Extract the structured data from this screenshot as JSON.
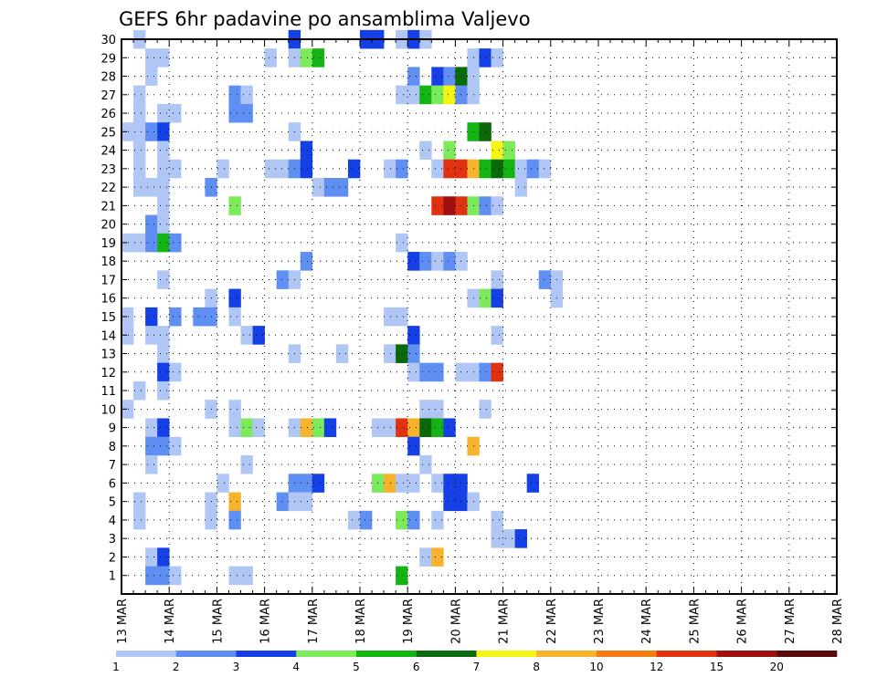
{
  "chart_data": {
    "type": "heatmap",
    "title": "GEFS 6hr padavine po ansamblima Valjevo",
    "y_ticks": [
      "1",
      "2",
      "3",
      "4",
      "5",
      "6",
      "7",
      "8",
      "9",
      "10",
      "11",
      "12",
      "13",
      "14",
      "15",
      "16",
      "17",
      "18",
      "19",
      "20",
      "21",
      "22",
      "23",
      "24",
      "25",
      "26",
      "27",
      "28",
      "29",
      "30"
    ],
    "x_ticks": [
      "13 MAR",
      "14 MAR",
      "15 MAR",
      "16 MAR",
      "17 MAR",
      "18 MAR",
      "19 MAR",
      "20 MAR",
      "21 MAR",
      "22 MAR",
      "23 MAR",
      "24 MAR",
      "25 MAR",
      "26 MAR",
      "27 MAR",
      "28 MAR"
    ],
    "x_range_days": [
      13,
      28
    ],
    "y_range": [
      0,
      30
    ],
    "grid": true,
    "legend": {
      "position": "bottom",
      "colors": [
        "#b0c6f5",
        "#5f8ff2",
        "#1440e6",
        "#7cea5a",
        "#14b414",
        "#0a6a0a",
        "#f5f514",
        "#f8b32c",
        "#f57d14",
        "#e03210",
        "#a01010",
        "#5a0a0a"
      ],
      "labels": [
        "1",
        "2",
        "3",
        "4",
        "5",
        "6",
        "7",
        "8",
        "10",
        "12",
        "15",
        "20"
      ]
    },
    "cells": [
      [
        1,
        30,
        0
      ],
      [
        14,
        30,
        2
      ],
      [
        20,
        30,
        2
      ],
      [
        21,
        30,
        2
      ],
      [
        23,
        30,
        0
      ],
      [
        24,
        30,
        2
      ],
      [
        25,
        30,
        0
      ],
      [
        2,
        29,
        0
      ],
      [
        3,
        29,
        0
      ],
      [
        12,
        29,
        0
      ],
      [
        14,
        29,
        0
      ],
      [
        15,
        29,
        3
      ],
      [
        16,
        29,
        4
      ],
      [
        29,
        29,
        0
      ],
      [
        30,
        29,
        2
      ],
      [
        31,
        29,
        0
      ],
      [
        2,
        28,
        0
      ],
      [
        24,
        28,
        1
      ],
      [
        26,
        28,
        2
      ],
      [
        27,
        28,
        1
      ],
      [
        28,
        28,
        5
      ],
      [
        29,
        28,
        0
      ],
      [
        1,
        27,
        0
      ],
      [
        9,
        27,
        1
      ],
      [
        10,
        27,
        0
      ],
      [
        23,
        27,
        0
      ],
      [
        24,
        27,
        0
      ],
      [
        25,
        27,
        4
      ],
      [
        26,
        27,
        3
      ],
      [
        27,
        27,
        6
      ],
      [
        28,
        27,
        1
      ],
      [
        29,
        27,
        0
      ],
      [
        1,
        26,
        0
      ],
      [
        3,
        26,
        0
      ],
      [
        4,
        26,
        0
      ],
      [
        9,
        26,
        1
      ],
      [
        10,
        26,
        1
      ],
      [
        0,
        25,
        0
      ],
      [
        1,
        25,
        0
      ],
      [
        2,
        25,
        1
      ],
      [
        3,
        25,
        2
      ],
      [
        14,
        25,
        0
      ],
      [
        29,
        25,
        4
      ],
      [
        30,
        25,
        5
      ],
      [
        1,
        24,
        0
      ],
      [
        3,
        24,
        0
      ],
      [
        15,
        24,
        2
      ],
      [
        25,
        24,
        0
      ],
      [
        27,
        24,
        3
      ],
      [
        31,
        24,
        6
      ],
      [
        32,
        24,
        3
      ],
      [
        1,
        23,
        0
      ],
      [
        3,
        23,
        0
      ],
      [
        4,
        23,
        0
      ],
      [
        8,
        23,
        0
      ],
      [
        12,
        23,
        0
      ],
      [
        13,
        23,
        0
      ],
      [
        14,
        23,
        1
      ],
      [
        15,
        23,
        2
      ],
      [
        19,
        23,
        2
      ],
      [
        22,
        23,
        0
      ],
      [
        23,
        23,
        1
      ],
      [
        26,
        23,
        0
      ],
      [
        27,
        23,
        9
      ],
      [
        28,
        23,
        9
      ],
      [
        29,
        23,
        7
      ],
      [
        30,
        23,
        4
      ],
      [
        31,
        23,
        5
      ],
      [
        32,
        23,
        4
      ],
      [
        33,
        23,
        0
      ],
      [
        34,
        23,
        1
      ],
      [
        35,
        23,
        0
      ],
      [
        1,
        22,
        0
      ],
      [
        2,
        22,
        0
      ],
      [
        3,
        22,
        0
      ],
      [
        7,
        22,
        1
      ],
      [
        16,
        22,
        0
      ],
      [
        17,
        22,
        1
      ],
      [
        18,
        22,
        1
      ],
      [
        33,
        22,
        0
      ],
      [
        3,
        21,
        0
      ],
      [
        9,
        21,
        3
      ],
      [
        26,
        21,
        9
      ],
      [
        27,
        21,
        10
      ],
      [
        28,
        21,
        9
      ],
      [
        29,
        21,
        3
      ],
      [
        30,
        21,
        1
      ],
      [
        31,
        21,
        0
      ],
      [
        2,
        20,
        1
      ],
      [
        3,
        20,
        0
      ],
      [
        0,
        19,
        0
      ],
      [
        1,
        19,
        0
      ],
      [
        2,
        19,
        1
      ],
      [
        3,
        19,
        4
      ],
      [
        4,
        19,
        1
      ],
      [
        23,
        19,
        0
      ],
      [
        15,
        18,
        1
      ],
      [
        24,
        18,
        2
      ],
      [
        25,
        18,
        1
      ],
      [
        26,
        18,
        0
      ],
      [
        27,
        18,
        1
      ],
      [
        28,
        18,
        0
      ],
      [
        3,
        17,
        0
      ],
      [
        13,
        17,
        1
      ],
      [
        14,
        17,
        0
      ],
      [
        31,
        17,
        0
      ],
      [
        35,
        17,
        1
      ],
      [
        36,
        17,
        0
      ],
      [
        7,
        16,
        0
      ],
      [
        9,
        16,
        2
      ],
      [
        29,
        16,
        0
      ],
      [
        30,
        16,
        3
      ],
      [
        31,
        16,
        2
      ],
      [
        36,
        16,
        0
      ],
      [
        0,
        15,
        0
      ],
      [
        2,
        15,
        2
      ],
      [
        4,
        15,
        1
      ],
      [
        6,
        15,
        1
      ],
      [
        7,
        15,
        1
      ],
      [
        9,
        15,
        0
      ],
      [
        22,
        15,
        0
      ],
      [
        23,
        15,
        0
      ],
      [
        0,
        14,
        0
      ],
      [
        2,
        14,
        0
      ],
      [
        3,
        14,
        0
      ],
      [
        10,
        14,
        0
      ],
      [
        11,
        14,
        2
      ],
      [
        24,
        14,
        2
      ],
      [
        31,
        14,
        0
      ],
      [
        3,
        13,
        0
      ],
      [
        14,
        13,
        0
      ],
      [
        18,
        13,
        0
      ],
      [
        22,
        13,
        0
      ],
      [
        23,
        13,
        5
      ],
      [
        24,
        13,
        1
      ],
      [
        3,
        12,
        2
      ],
      [
        4,
        12,
        0
      ],
      [
        24,
        12,
        0
      ],
      [
        25,
        12,
        1
      ],
      [
        26,
        12,
        1
      ],
      [
        28,
        12,
        0
      ],
      [
        29,
        12,
        0
      ],
      [
        30,
        12,
        1
      ],
      [
        31,
        12,
        9
      ],
      [
        1,
        11,
        0
      ],
      [
        3,
        11,
        0
      ],
      [
        0,
        10,
        0
      ],
      [
        7,
        10,
        0
      ],
      [
        9,
        10,
        0
      ],
      [
        25,
        10,
        0
      ],
      [
        26,
        10,
        0
      ],
      [
        30,
        10,
        0
      ],
      [
        2,
        9,
        0
      ],
      [
        3,
        9,
        2
      ],
      [
        9,
        9,
        0
      ],
      [
        10,
        9,
        3
      ],
      [
        11,
        9,
        0
      ],
      [
        14,
        9,
        0
      ],
      [
        15,
        9,
        7
      ],
      [
        16,
        9,
        3
      ],
      [
        17,
        9,
        2
      ],
      [
        21,
        9,
        0
      ],
      [
        22,
        9,
        0
      ],
      [
        23,
        9,
        9
      ],
      [
        24,
        9,
        7
      ],
      [
        25,
        9,
        5
      ],
      [
        26,
        9,
        4
      ],
      [
        27,
        9,
        2
      ],
      [
        2,
        8,
        1
      ],
      [
        3,
        8,
        1
      ],
      [
        4,
        8,
        0
      ],
      [
        24,
        8,
        2
      ],
      [
        29,
        8,
        7
      ],
      [
        2,
        7,
        0
      ],
      [
        10,
        7,
        0
      ],
      [
        25,
        7,
        0
      ],
      [
        8,
        6,
        0
      ],
      [
        14,
        6,
        1
      ],
      [
        15,
        6,
        1
      ],
      [
        16,
        6,
        2
      ],
      [
        21,
        6,
        3
      ],
      [
        22,
        6,
        7
      ],
      [
        23,
        6,
        0
      ],
      [
        24,
        6,
        0
      ],
      [
        26,
        6,
        0
      ],
      [
        27,
        6,
        2
      ],
      [
        28,
        6,
        2
      ],
      [
        34,
        6,
        2
      ],
      [
        1,
        5,
        0
      ],
      [
        7,
        5,
        0
      ],
      [
        9,
        5,
        7
      ],
      [
        13,
        5,
        1
      ],
      [
        14,
        5,
        0
      ],
      [
        15,
        5,
        0
      ],
      [
        27,
        5,
        2
      ],
      [
        28,
        5,
        2
      ],
      [
        29,
        5,
        0
      ],
      [
        1,
        4,
        0
      ],
      [
        7,
        4,
        0
      ],
      [
        9,
        4,
        1
      ],
      [
        19,
        4,
        0
      ],
      [
        20,
        4,
        1
      ],
      [
        23,
        4,
        3
      ],
      [
        24,
        4,
        1
      ],
      [
        26,
        4,
        0
      ],
      [
        31,
        4,
        0
      ],
      [
        31,
        3,
        0
      ],
      [
        32,
        3,
        0
      ],
      [
        33,
        3,
        2
      ],
      [
        2,
        2,
        0
      ],
      [
        3,
        2,
        2
      ],
      [
        25,
        2,
        0
      ],
      [
        26,
        2,
        7
      ],
      [
        2,
        1,
        1
      ],
      [
        3,
        1,
        1
      ],
      [
        4,
        1,
        0
      ],
      [
        9,
        1,
        0
      ],
      [
        10,
        1,
        0
      ],
      [
        23,
        1,
        4
      ]
    ]
  }
}
